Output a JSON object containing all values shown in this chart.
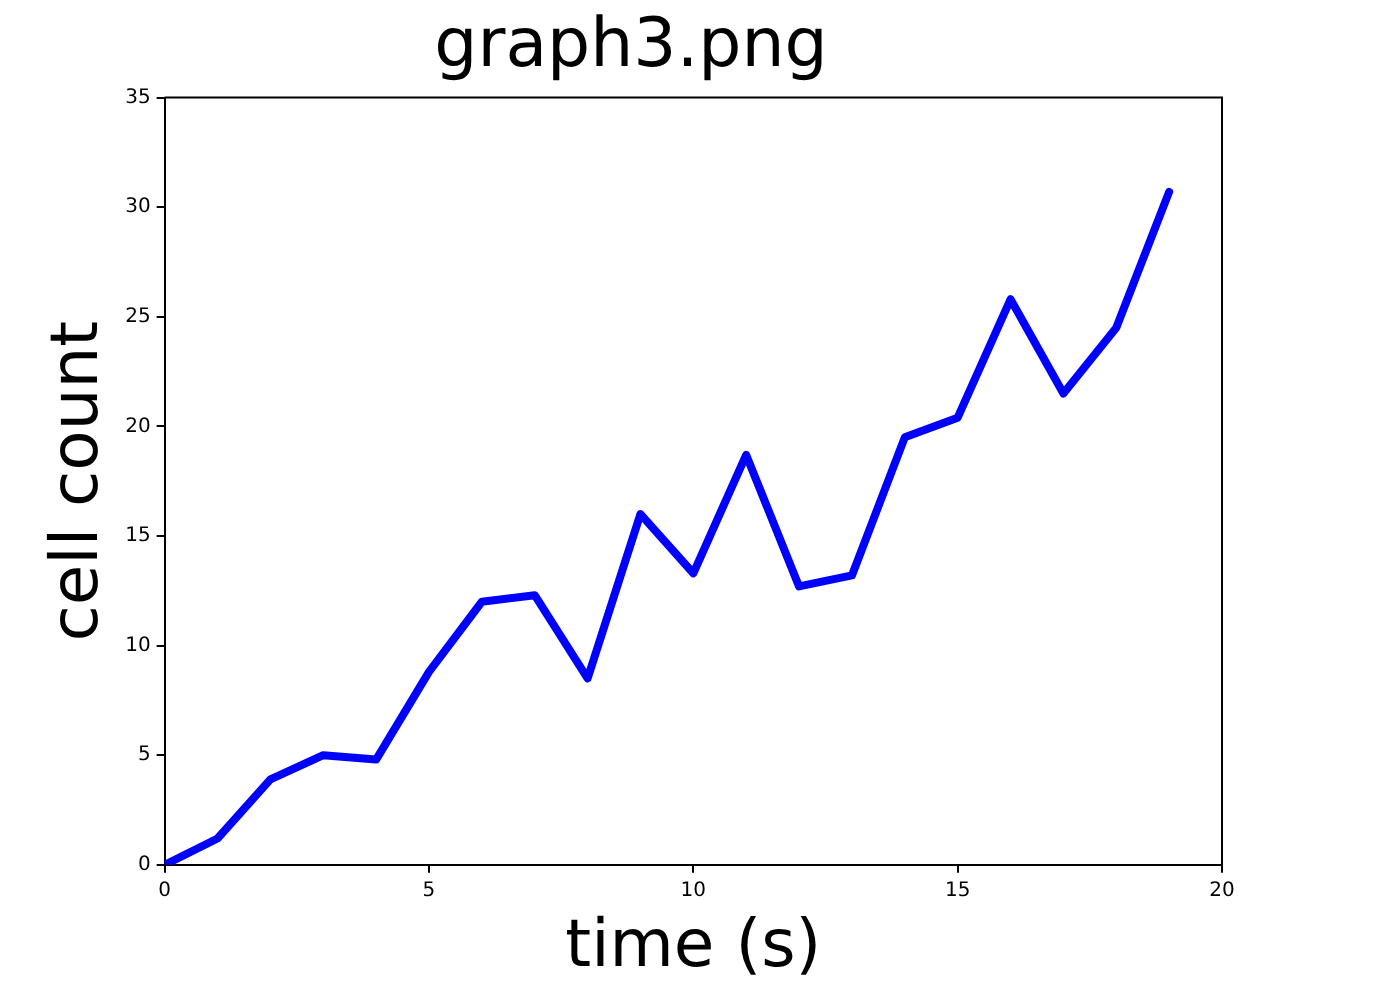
{
  "chart_data": {
    "type": "line",
    "title": "graph3.png",
    "xlabel": "time (s)",
    "ylabel": "cell count",
    "x": [
      0,
      1,
      2,
      3,
      4,
      5,
      6,
      7,
      8,
      9,
      10,
      11,
      12,
      13,
      14,
      15,
      16,
      17,
      18,
      19
    ],
    "series": [
      {
        "color": "#0000ff",
        "values": [
          0,
          1.2,
          3.9,
          5.0,
          4.8,
          8.8,
          12.0,
          12.3,
          8.5,
          16.0,
          13.3,
          18.7,
          12.7,
          13.2,
          19.5,
          20.4,
          25.8,
          21.5,
          24.5,
          30.7
        ]
      }
    ],
    "xlim": [
      0,
      20
    ],
    "xticks": [
      0,
      5,
      10,
      15,
      20
    ],
    "ylim": [
      0,
      35
    ],
    "yticks": [
      0,
      5,
      10,
      15,
      20,
      25,
      30,
      35
    ],
    "grid": false,
    "legend": false,
    "marker": "none",
    "line_style": "solid"
  }
}
